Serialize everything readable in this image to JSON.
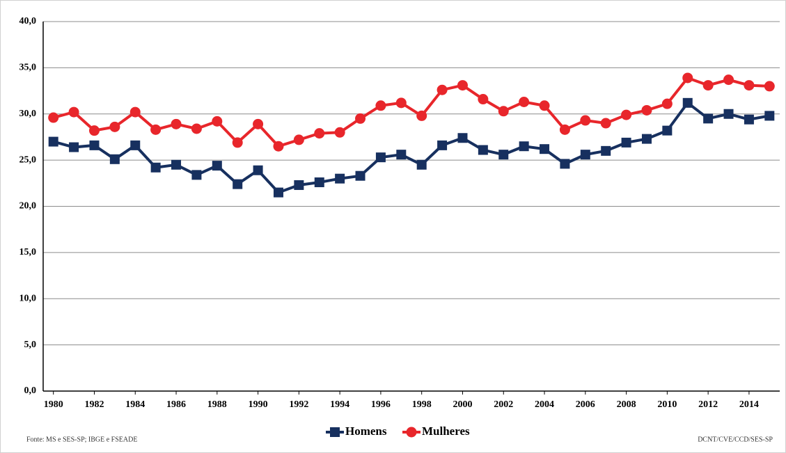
{
  "chart_data": {
    "type": "line",
    "x": [
      1980,
      1981,
      1982,
      1983,
      1984,
      1985,
      1986,
      1987,
      1988,
      1989,
      1990,
      1991,
      1992,
      1993,
      1994,
      1995,
      1996,
      1997,
      1998,
      1999,
      2000,
      2001,
      2002,
      2003,
      2004,
      2005,
      2006,
      2007,
      2008,
      2009,
      2010,
      2011,
      2012,
      2013,
      2014,
      2015
    ],
    "series": [
      {
        "name": "Homens",
        "color": "#17305f",
        "marker": "square",
        "values": [
          27.0,
          26.4,
          26.6,
          25.1,
          26.6,
          24.2,
          24.5,
          23.4,
          24.4,
          22.4,
          23.9,
          21.5,
          22.3,
          22.6,
          23.0,
          23.3,
          25.3,
          25.6,
          24.5,
          26.6,
          27.4,
          26.1,
          25.6,
          26.5,
          26.2,
          24.6,
          25.6,
          26.0,
          26.9,
          27.3,
          28.2,
          31.2,
          29.5,
          30.0,
          29.4,
          29.8
        ]
      },
      {
        "name": "Mulheres",
        "color": "#e8262b",
        "marker": "circle",
        "values": [
          29.6,
          30.2,
          28.2,
          28.6,
          30.2,
          28.3,
          28.9,
          28.4,
          29.2,
          26.9,
          28.9,
          26.5,
          27.2,
          27.9,
          28.0,
          29.5,
          30.9,
          31.2,
          29.8,
          32.6,
          33.1,
          31.6,
          30.3,
          31.3,
          30.9,
          28.3,
          29.3,
          29.0,
          29.9,
          30.4,
          31.1,
          33.9,
          33.1,
          33.7,
          33.1,
          33.0
        ]
      }
    ],
    "xlim": [
      1979.5,
      2015.5
    ],
    "xticks": [
      1980,
      1982,
      1984,
      1986,
      1988,
      1990,
      1992,
      1994,
      1996,
      1998,
      2000,
      2002,
      2004,
      2006,
      2008,
      2010,
      2012,
      2014
    ],
    "ylim": [
      0,
      40
    ],
    "yticks": [
      {
        "value": 0,
        "label": "0,0"
      },
      {
        "value": 5,
        "label": "5,0"
      },
      {
        "value": 10,
        "label": "10,0"
      },
      {
        "value": 15,
        "label": "15,0"
      },
      {
        "value": 20,
        "label": "20,0"
      },
      {
        "value": 25,
        "label": "25,0"
      },
      {
        "value": 30,
        "label": "30,0"
      },
      {
        "value": 35,
        "label": "35,0"
      },
      {
        "value": 40,
        "label": "40,0"
      }
    ],
    "grid": true,
    "legend": "bottom",
    "source": "Fonte: MS e SES-SP; IBGE e FSEADE",
    "credit": "DCNT/CVE/CCD/SES-SP"
  }
}
